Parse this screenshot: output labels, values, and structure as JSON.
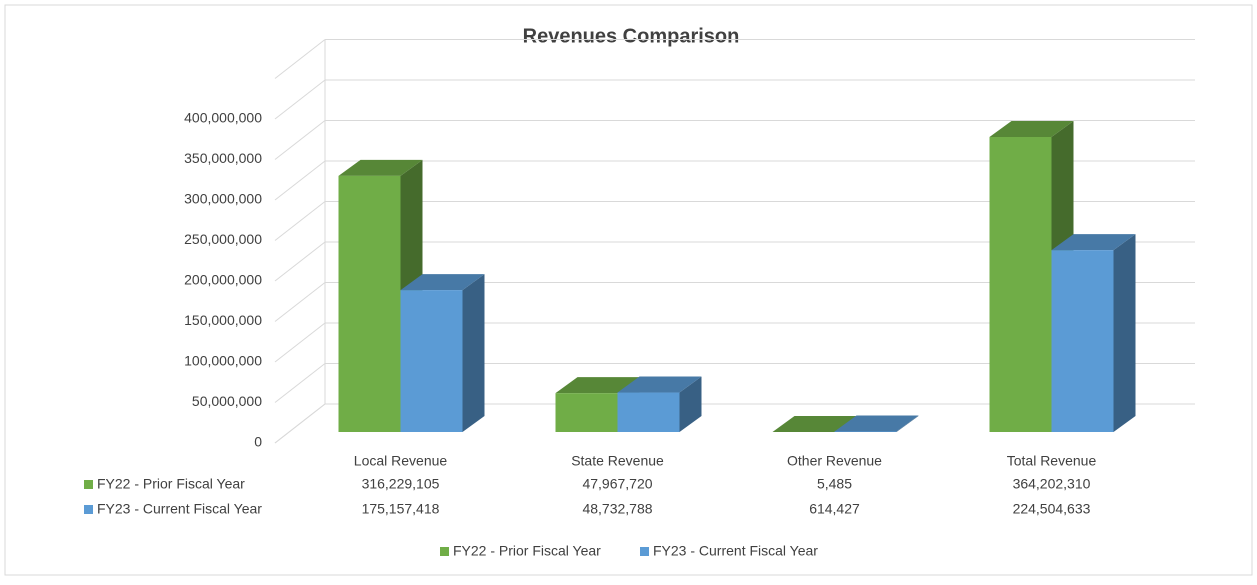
{
  "chart_data": {
    "type": "bar3d",
    "title": "Revenues Comparison",
    "categories": [
      "Local Revenue",
      "State Revenue",
      "Other Revenue",
      "Total Revenue"
    ],
    "series": [
      {
        "name": "FY22 - Prior Fiscal Year",
        "color": "#70ad47",
        "values": [
          316229105,
          47967720,
          5485,
          364202310
        ],
        "value_labels": [
          "316,229,105",
          "47,967,720",
          "5,485",
          "364,202,310"
        ]
      },
      {
        "name": "FY23 - Current Fiscal Year",
        "color": "#5b9bd5",
        "values": [
          175157418,
          48732788,
          614427,
          224504633
        ],
        "value_labels": [
          "175,157,418",
          "48,732,788",
          "614,427",
          "224,504,633"
        ]
      }
    ],
    "ylim": [
      0,
      450000000
    ],
    "yticks": [
      0,
      {
        "value": 50000000,
        "label": "50,000,000"
      },
      {
        "value": 100000000,
        "label": "100,000,000"
      },
      {
        "value": 150000000,
        "label": "150,000,000"
      },
      {
        "value": 200000000,
        "label": "200,000,000"
      },
      {
        "value": 250000000,
        "label": "250,000,000"
      },
      {
        "value": 300000000,
        "label": "300,000,000"
      },
      {
        "value": 350000000,
        "label": "350,000,000"
      },
      {
        "value": 400000000,
        "label": "400,000,000"
      }
    ],
    "grid": true,
    "legend": "bottom",
    "data_table": true
  }
}
